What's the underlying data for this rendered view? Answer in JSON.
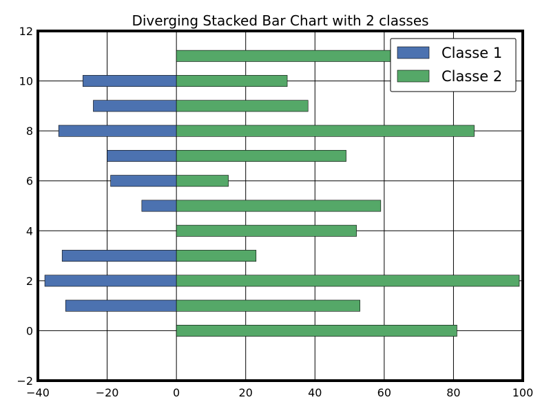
{
  "chart_data": {
    "type": "bar",
    "orientation": "horizontal",
    "stacking": "diverging",
    "title": "Diverging Stacked Bar Chart with 2 classes",
    "xlabel": "",
    "ylabel": "",
    "xlim": [
      -40,
      100
    ],
    "ylim": [
      -2,
      12
    ],
    "xticks": [
      "−40",
      "−20",
      "0",
      "20",
      "40",
      "60",
      "80",
      "100"
    ],
    "yticks": [
      "−2",
      "0",
      "2",
      "4",
      "6",
      "8",
      "10",
      "12"
    ],
    "grid": true,
    "legend": "top-right",
    "y": [
      0,
      1,
      2,
      3,
      4,
      5,
      6,
      7,
      8,
      9,
      10,
      11
    ],
    "series": [
      {
        "name": "Classe 1",
        "color": "#4c72b0",
        "values": [
          0,
          -32,
          -38,
          -33,
          0,
          -10,
          -19,
          -20,
          -34,
          -24,
          -27,
          0
        ]
      },
      {
        "name": "Classe 2",
        "color": "#55a868",
        "values": [
          81,
          53,
          99,
          23,
          52,
          59,
          15,
          49,
          86,
          38,
          32,
          62
        ]
      }
    ]
  }
}
